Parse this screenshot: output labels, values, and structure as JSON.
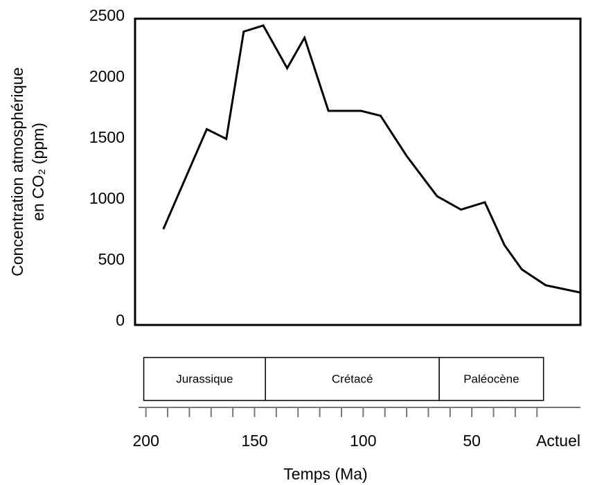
{
  "chart_data": {
    "type": "line",
    "ylabel": [
      "Concentration atmosphérique",
      "en CO₂ (ppm)"
    ],
    "xlabel": "Temps (Ma)",
    "x": [
      192,
      172,
      163,
      155,
      146,
      135,
      127,
      116,
      101,
      92,
      80,
      66,
      55,
      44,
      35,
      27,
      16,
      0
    ],
    "series": [
      {
        "color": "#000000",
        "values": [
          780,
          1600,
          1520,
          2400,
          2450,
          2100,
          2350,
          1750,
          1750,
          1710,
          1380,
          1050,
          940,
          1000,
          650,
          450,
          320,
          260
        ]
      }
    ],
    "xlim": [
      205,
      0
    ],
    "ylim": [
      0,
      2500
    ],
    "xticks": [
      200,
      150,
      100,
      50,
      {
        "value": 0,
        "label": "Actuel"
      }
    ],
    "xminor_ticks": [
      200,
      190,
      180,
      170,
      160,
      150,
      140,
      130,
      120,
      110,
      100,
      90,
      80,
      70,
      60,
      50,
      40,
      30,
      20
    ],
    "yticks": [
      0,
      500,
      1000,
      1500,
      2000,
      2500
    ],
    "grid": false,
    "periods": [
      {
        "name": "Jurassique",
        "start": 201,
        "end": 145
      },
      {
        "name": "Crétacé",
        "start": 145,
        "end": 65
      },
      {
        "name": "Paléocène",
        "start": 65,
        "end": 17
      }
    ]
  }
}
